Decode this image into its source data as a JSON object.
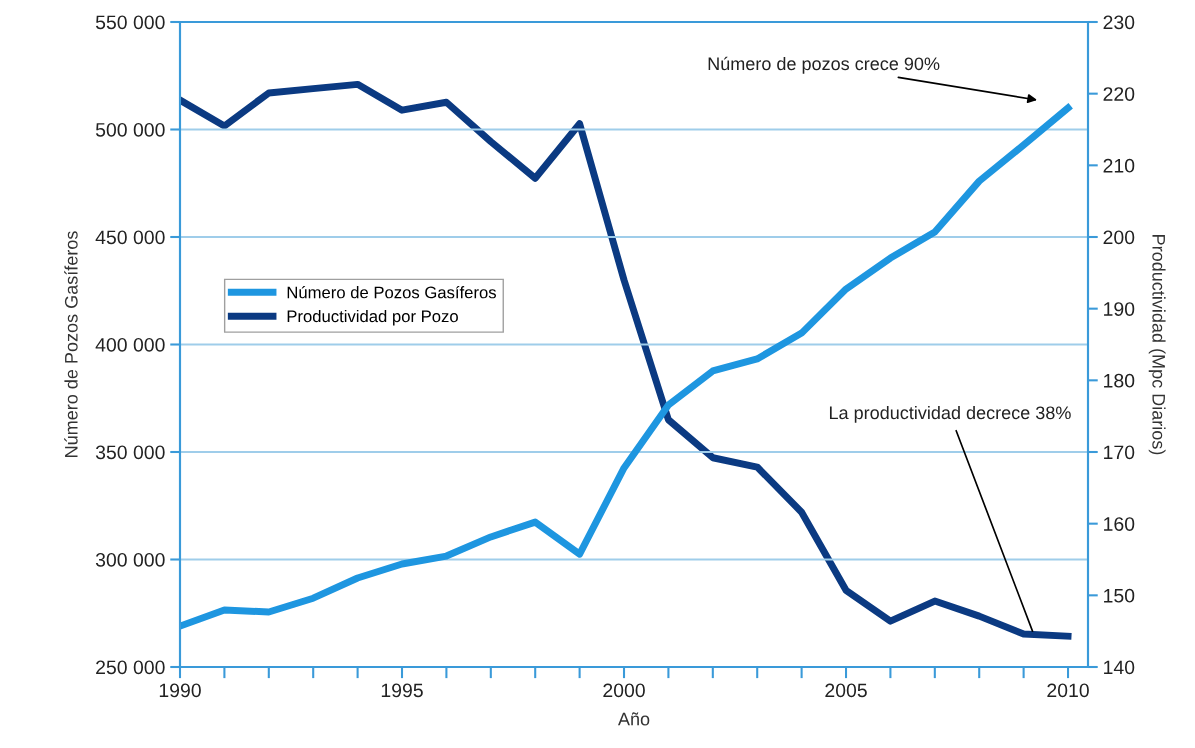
{
  "chart_data": {
    "type": "line",
    "xlabel": "Año",
    "ylabel": "Número de Pozos Gasíferos",
    "y2label": "Productividad (Mpc Diarios)",
    "x": [
      1990,
      1991,
      1992,
      1993,
      1994,
      1995,
      1996,
      1997,
      1998,
      1999,
      2000,
      2001,
      2002,
      2003,
      2004,
      2005,
      2006,
      2007,
      2008,
      2009,
      2010
    ],
    "series": [
      {
        "name": "Número de Pozos Gasíferos",
        "color": "#1e96e0",
        "values": [
          269000,
          276500,
          275600,
          282000,
          291400,
          297900,
          301600,
          310500,
          317400,
          302500,
          342600,
          371900,
          387700,
          393300,
          405300,
          425800,
          440200,
          452300,
          476000,
          492800,
          510000
        ]
      },
      {
        "name": "Productividad por Pozo",
        "color": "#0b3a82",
        "axis": "y2",
        "values": [
          219.1,
          215.5,
          220.1,
          220.7,
          221.3,
          217.7,
          218.8,
          213.3,
          208.2,
          215.8,
          194.0,
          174.5,
          169.2,
          167.9,
          161.6,
          150.7,
          146.4,
          149.2,
          147.1,
          144.6,
          144.3
        ]
      }
    ],
    "xlim": [
      1990,
      2010.45
    ],
    "xticks": [
      1990,
      {
        "value": 1991,
        "label": null
      },
      {
        "value": 1992,
        "label": null
      },
      {
        "value": 1993,
        "label": null
      },
      {
        "value": 1994,
        "label": null
      },
      1995,
      {
        "value": 1996,
        "label": null
      },
      {
        "value": 1997,
        "label": null
      },
      {
        "value": 1998,
        "label": null
      },
      {
        "value": 1999,
        "label": null
      },
      2000,
      {
        "value": 2001,
        "label": null
      },
      {
        "value": 2002,
        "label": null
      },
      {
        "value": 2003,
        "label": null
      },
      {
        "value": 2004,
        "label": null
      },
      2005,
      {
        "value": 2006,
        "label": null
      },
      {
        "value": 2007,
        "label": null
      },
      {
        "value": 2008,
        "label": null
      },
      {
        "value": 2009,
        "label": null
      },
      2010
    ],
    "ylim": [
      250000,
      550000
    ],
    "yticks": [
      {
        "value": 250000,
        "label": "250 000"
      },
      {
        "value": 300000,
        "label": "300 000"
      },
      {
        "value": 350000,
        "label": "350 000"
      },
      {
        "value": 400000,
        "label": "400 000"
      },
      {
        "value": 450000,
        "label": "450 000"
      },
      {
        "value": 500000,
        "label": "500 000"
      },
      {
        "value": 550000,
        "label": "550 000"
      }
    ],
    "y2lim": [
      140,
      230
    ],
    "y2ticks": [
      140,
      150,
      160,
      170,
      180,
      190,
      200,
      210,
      220,
      230
    ],
    "grid": "y",
    "legend": "left",
    "marker": "none",
    "line_style": "solid",
    "annotations": [
      "Número de pozos crece 90%",
      {
        "text": "La productividad decrece 38%",
        "x": 2009.2,
        "y": 266700
      }
    ]
  }
}
